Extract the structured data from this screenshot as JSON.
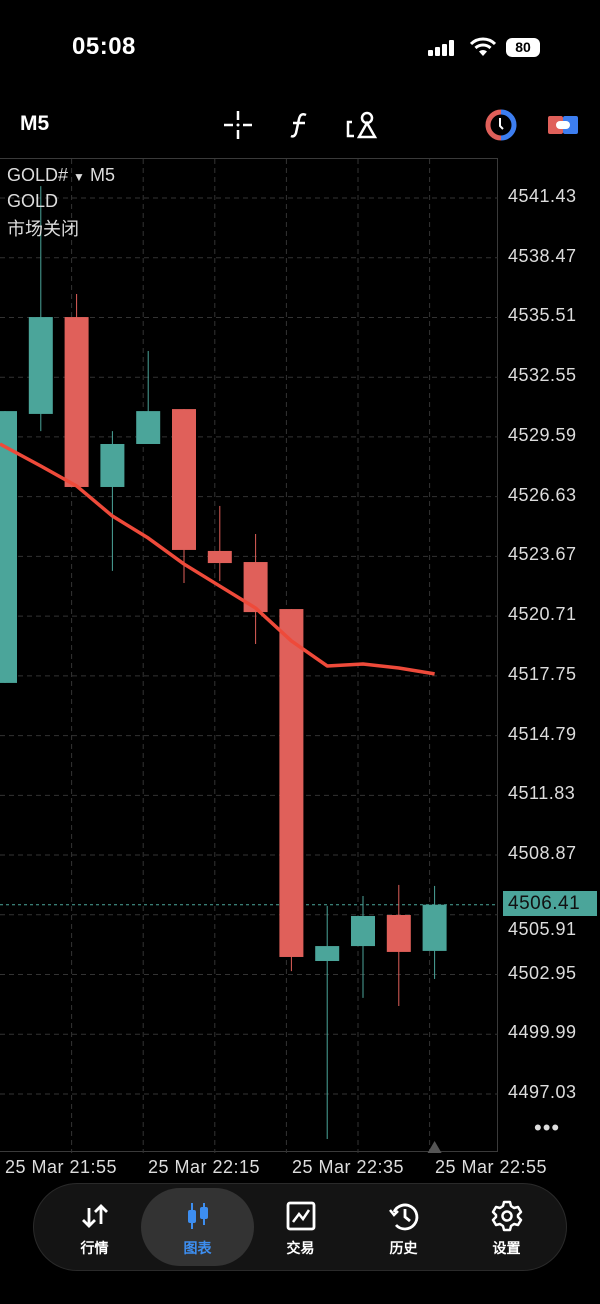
{
  "status_bar": {
    "time": "05:08",
    "battery": "80"
  },
  "toolbar": {
    "timeframe": "M5",
    "icons": [
      "crosshair-icon",
      "function-icon",
      "objects-icon",
      "trade-clock-icon",
      "toggle-icon"
    ]
  },
  "chart": {
    "symbol": "GOLD#",
    "symbol_timeframe": "M5",
    "description": "GOLD",
    "market_status": "市场关闭",
    "current_price": "4506.41",
    "more": "•••",
    "colors": {
      "bull": "#4ba59a",
      "bear": "#e0605a",
      "ma": "#ee4a3a"
    }
  },
  "chart_data": {
    "type": "candlestick",
    "price_ticks": [
      "4541.43",
      "4538.47",
      "4535.51",
      "4532.55",
      "4529.59",
      "4526.63",
      "4523.67",
      "4520.71",
      "4517.75",
      "4514.79",
      "4511.83",
      "4508.87",
      "4505.91",
      "4502.95",
      "4499.99",
      "4497.03"
    ],
    "time_labels": [
      "25 Mar 21:55",
      "25 Mar 22:15",
      "25 Mar 22:35",
      "25 Mar 22:55"
    ],
    "ylim": [
      4495.0,
      4543.0
    ],
    "grid": true,
    "candles": [
      {
        "o": 4517.4,
        "h": 4530.87,
        "l": 4517.4,
        "c": 4530.87
      },
      {
        "o": 4530.73,
        "h": 4542.02,
        "l": 4529.88,
        "c": 4535.53
      },
      {
        "o": 4535.53,
        "h": 4536.67,
        "l": 4527.11,
        "c": 4527.11
      },
      {
        "o": 4527.11,
        "h": 4529.88,
        "l": 4522.95,
        "c": 4529.24
      },
      {
        "o": 4529.24,
        "h": 4533.85,
        "l": 4529.24,
        "c": 4530.87
      },
      {
        "o": 4530.97,
        "h": 4530.97,
        "l": 4522.35,
        "c": 4523.99
      },
      {
        "o": 4523.94,
        "h": 4526.17,
        "l": 4522.45,
        "c": 4523.34
      },
      {
        "o": 4523.39,
        "h": 4524.78,
        "l": 4519.33,
        "c": 4520.91
      },
      {
        "o": 4521.06,
        "h": 4521.06,
        "l": 4503.12,
        "c": 4503.82
      },
      {
        "o": 4503.62,
        "h": 4506.35,
        "l": 4494.8,
        "c": 4504.36
      },
      {
        "o": 4504.36,
        "h": 4506.84,
        "l": 4501.79,
        "c": 4505.85
      },
      {
        "o": 4505.9,
        "h": 4507.39,
        "l": 4501.39,
        "c": 4504.07
      },
      {
        "o": 4504.12,
        "h": 4507.34,
        "l": 4502.73,
        "c": 4506.41
      }
    ],
    "moving_average": [
      4529.24,
      4528.15,
      4527.16,
      4525.67,
      4524.58,
      4523.29,
      4522.2,
      4521.11,
      4519.48,
      4518.24,
      4518.34,
      4518.14,
      4517.85
    ]
  },
  "nav": {
    "items": [
      {
        "label": "行情",
        "icon": "quotes-icon"
      },
      {
        "label": "图表",
        "icon": "chart-icon",
        "active": true
      },
      {
        "label": "交易",
        "icon": "trade-icon"
      },
      {
        "label": "历史",
        "icon": "history-icon"
      },
      {
        "label": "设置",
        "icon": "settings-icon"
      }
    ]
  }
}
